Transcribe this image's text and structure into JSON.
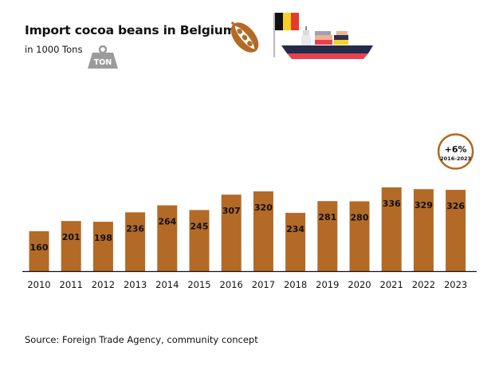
{
  "header": {
    "title": "Import cocoa beans in Belgium",
    "subtitle": "in 1000 Tons",
    "weight_icon_text": "TON"
  },
  "icons": [
    "weight-icon",
    "cocoa-pod-icon",
    "belgium-flag-icon",
    "cargo-ship-icon"
  ],
  "colors": {
    "bar": "#B36A26",
    "badge_border": "#B36A26",
    "axis": "#111111",
    "flag": [
      "#111111",
      "#F7D21E",
      "#E53A2C"
    ],
    "ship_hull": "#222B4A",
    "ship_hull_bottom": "#E8414D"
  },
  "chart_data": {
    "type": "bar",
    "categories": [
      "2010",
      "2011",
      "2012",
      "2013",
      "2014",
      "2015",
      "2016",
      "2017",
      "2018",
      "2019",
      "2020",
      "2021",
      "2022",
      "2023"
    ],
    "values": [
      160,
      201,
      198,
      236,
      264,
      245,
      307,
      320,
      234,
      281,
      280,
      336,
      329,
      326
    ],
    "data_labels": [
      "160",
      "201",
      "198",
      "236",
      "264",
      "245",
      "307",
      "320",
      "234",
      "281",
      "280",
      "336",
      "329",
      "326"
    ],
    "title": "Import cocoa beans in Belgium",
    "subtitle": "in 1000 Tons",
    "xlabel": "",
    "ylabel": "",
    "ylim": [
      0,
      340
    ],
    "grid": false,
    "annotation": {
      "text": "+6%",
      "subtext": "2016-2023",
      "category": "2023"
    }
  },
  "footer": {
    "source": "Source: Foreign Trade Agency, community concept"
  }
}
